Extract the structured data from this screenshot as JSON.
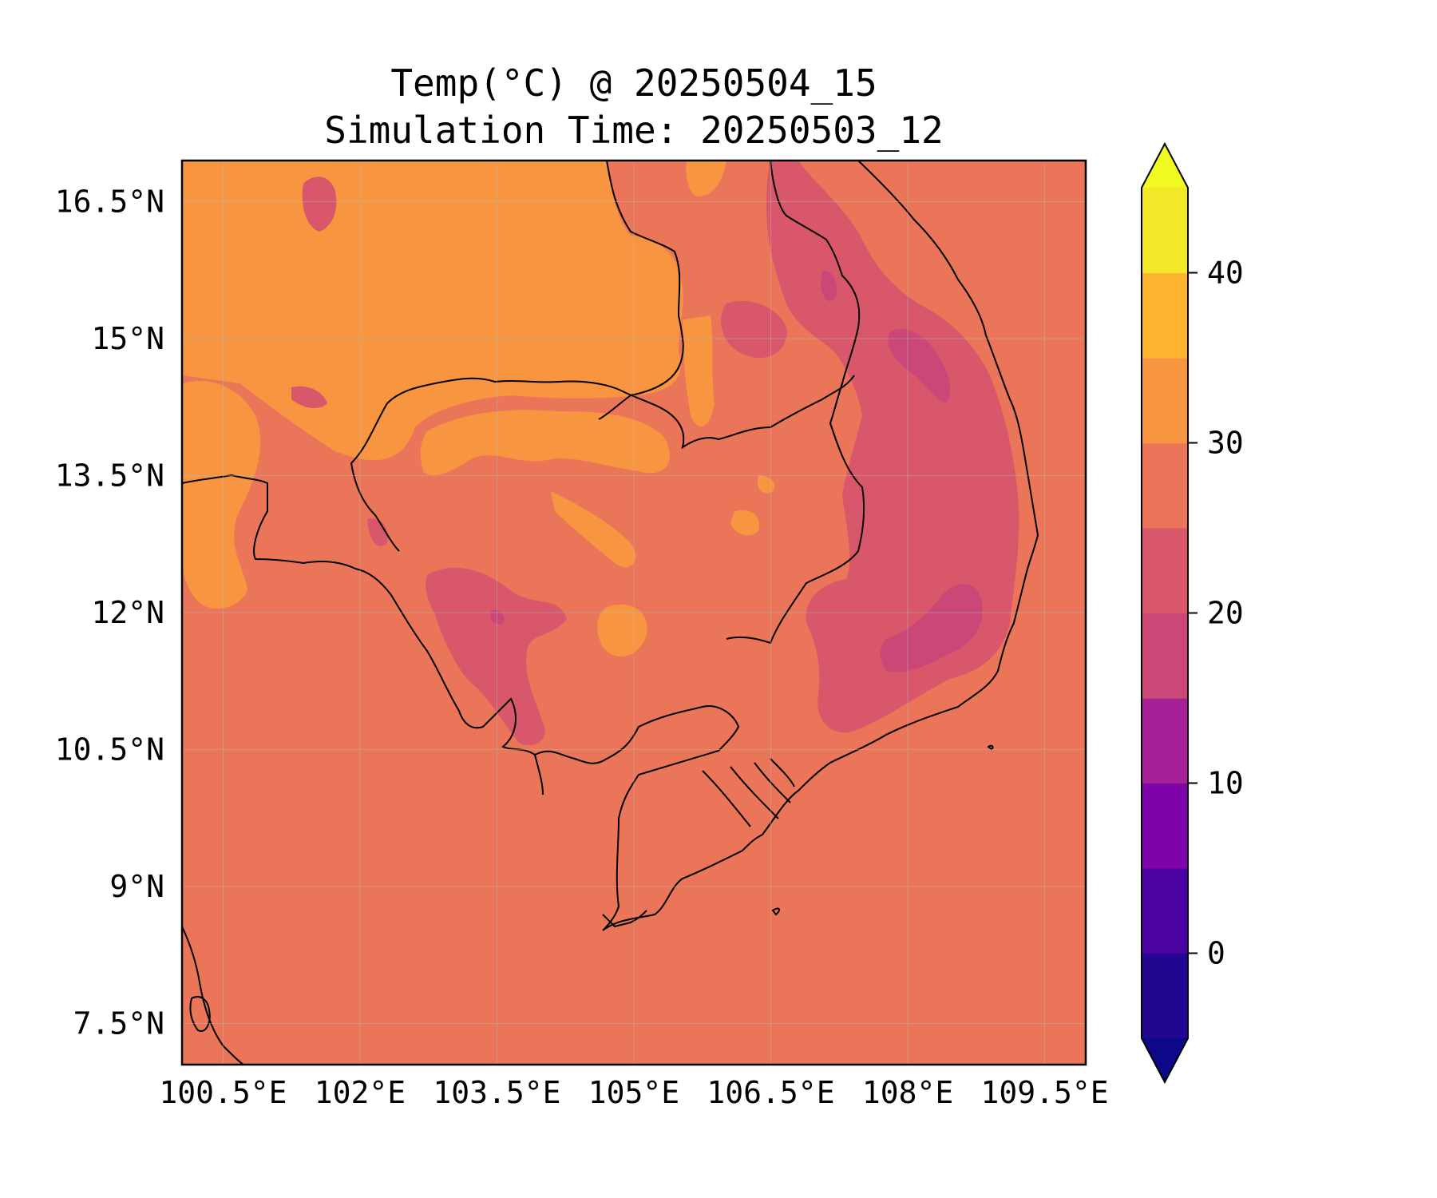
{
  "title": "Temp(°C) @ 20250504_15",
  "subtitle": "Simulation Time: 20250503_12",
  "map": {
    "extent": {
      "lon": [
        100.05,
        109.95
      ],
      "lat": [
        7.05,
        16.95
      ]
    },
    "x_ticks": [
      {
        "value": 100.5,
        "label": "100.5°E"
      },
      {
        "value": 102.0,
        "label": "102°E"
      },
      {
        "value": 103.5,
        "label": "103.5°E"
      },
      {
        "value": 105.0,
        "label": "105°E"
      },
      {
        "value": 106.5,
        "label": "106.5°E"
      },
      {
        "value": 108.0,
        "label": "108°E"
      },
      {
        "value": 109.5,
        "label": "109.5°E"
      }
    ],
    "y_ticks": [
      {
        "value": 16.5,
        "label": "16.5°N"
      },
      {
        "value": 15.0,
        "label": "15°N"
      },
      {
        "value": 13.5,
        "label": "13.5°N"
      },
      {
        "value": 12.0,
        "label": "12°N"
      },
      {
        "value": 10.5,
        "label": "10.5°N"
      },
      {
        "value": 9.0,
        "label": "9°N"
      },
      {
        "value": 7.5,
        "label": "7.5°N"
      }
    ],
    "gridlines": true,
    "background_level_color": "#ea7558"
  },
  "colorbar": {
    "levels": [
      -5,
      0,
      5,
      10,
      15,
      20,
      25,
      30,
      35,
      40,
      45
    ],
    "colors": [
      "#220692",
      "#4c02a1",
      "#7e03a8",
      "#a62098",
      "#cb4778",
      "#d8576b",
      "#ea7558",
      "#f89540",
      "#fdb42f",
      "#f2e827"
    ],
    "under_color": "#0d0887",
    "over_color": "#f0f921",
    "ticks": [
      {
        "value": 0,
        "label": "0"
      },
      {
        "value": 10,
        "label": "10"
      },
      {
        "value": 20,
        "label": "20"
      },
      {
        "value": 30,
        "label": "30"
      },
      {
        "value": 40,
        "label": "40"
      }
    ],
    "extend": "both"
  }
}
